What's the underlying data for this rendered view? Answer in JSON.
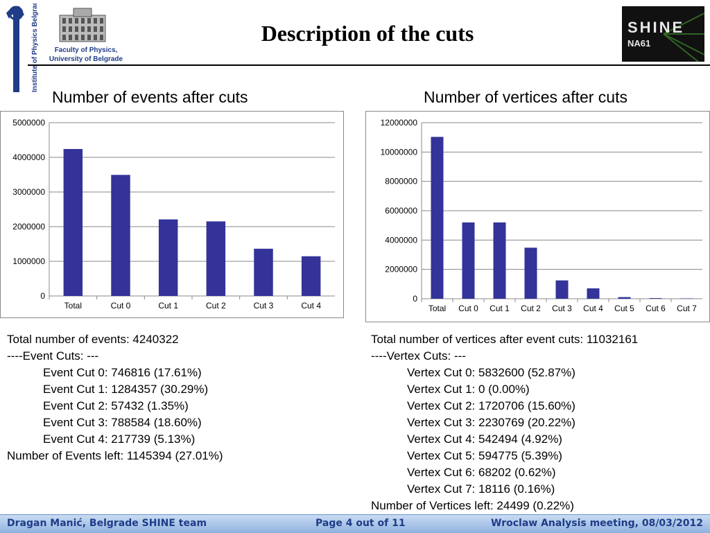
{
  "header": {
    "title": "Description of the cuts",
    "faculty_line1": "Faculty of Physics,",
    "faculty_line2": "University of Belgrade",
    "institute_text": "Institute of Physics Belgrade - Serbia",
    "shine_logo_text": "SHINE",
    "na61_text": "NA61"
  },
  "chart_data": [
    {
      "type": "bar",
      "title": "Number of events after cuts",
      "categories": [
        "Total",
        "Cut 0",
        "Cut 1",
        "Cut 2",
        "Cut 3",
        "Cut 4"
      ],
      "values": [
        4240322,
        3493506,
        2209149,
        2151717,
        1363133,
        1145394
      ],
      "ylim": [
        0,
        5000000
      ],
      "yticks": [
        "0",
        "1000000",
        "2000000",
        "3000000",
        "4000000",
        "5000000"
      ],
      "grid": true,
      "color": "#333399"
    },
    {
      "type": "bar",
      "title": "Number of vertices after cuts",
      "categories": [
        "Total",
        "Cut 0",
        "Cut 1",
        "Cut 2",
        "Cut 3",
        "Cut 4",
        "Cut 5",
        "Cut 6",
        "Cut 7"
      ],
      "values": [
        11032161,
        5199561,
        5199561,
        3478855,
        1248086,
        705592,
        110817,
        42615,
        24499
      ],
      "ylim": [
        0,
        12000000
      ],
      "yticks": [
        "0",
        "2000000",
        "4000000",
        "6000000",
        "8000000",
        "10000000",
        "12000000"
      ],
      "grid": true,
      "color": "#333399"
    }
  ],
  "stats_left": {
    "total": "Total number of events: 4240322",
    "cuts_header": "----Event Cuts: ---",
    "cuts": [
      "Event Cut 0: 746816 (17.61%)",
      "Event Cut 1: 1284357 (30.29%)",
      "Event Cut 2: 57432 (1.35%)",
      "Event Cut 3: 788584 (18.60%)",
      "Event Cut 4: 217739 (5.13%)"
    ],
    "left": "Number of Events left: 1145394 (27.01%)"
  },
  "stats_right": {
    "total": "Total number of vertices after event cuts: 11032161",
    "cuts_header": "----Vertex Cuts: ---",
    "cuts": [
      "Vertex Cut 0: 5832600 (52.87%)",
      "Vertex Cut 1: 0 (0.00%)",
      "Vertex Cut 2: 1720706 (15.60%)",
      "Vertex Cut 3: 2230769 (20.22%)",
      "Vertex Cut 4: 542494 (4.92%)",
      "Vertex Cut 5: 594775 (5.39%)",
      "Vertex Cut 6: 68202 (0.62%)",
      "Vertex Cut 7: 18116 (0.16%)"
    ],
    "left": "Number of Vertices left: 24499 (0.22%)"
  },
  "footer": {
    "author": "Dragan Manić, Belgrade SHINE team",
    "page": "Page 4 out of 11",
    "meeting": "Wroclaw Analysis meeting,  08/03/2012"
  }
}
